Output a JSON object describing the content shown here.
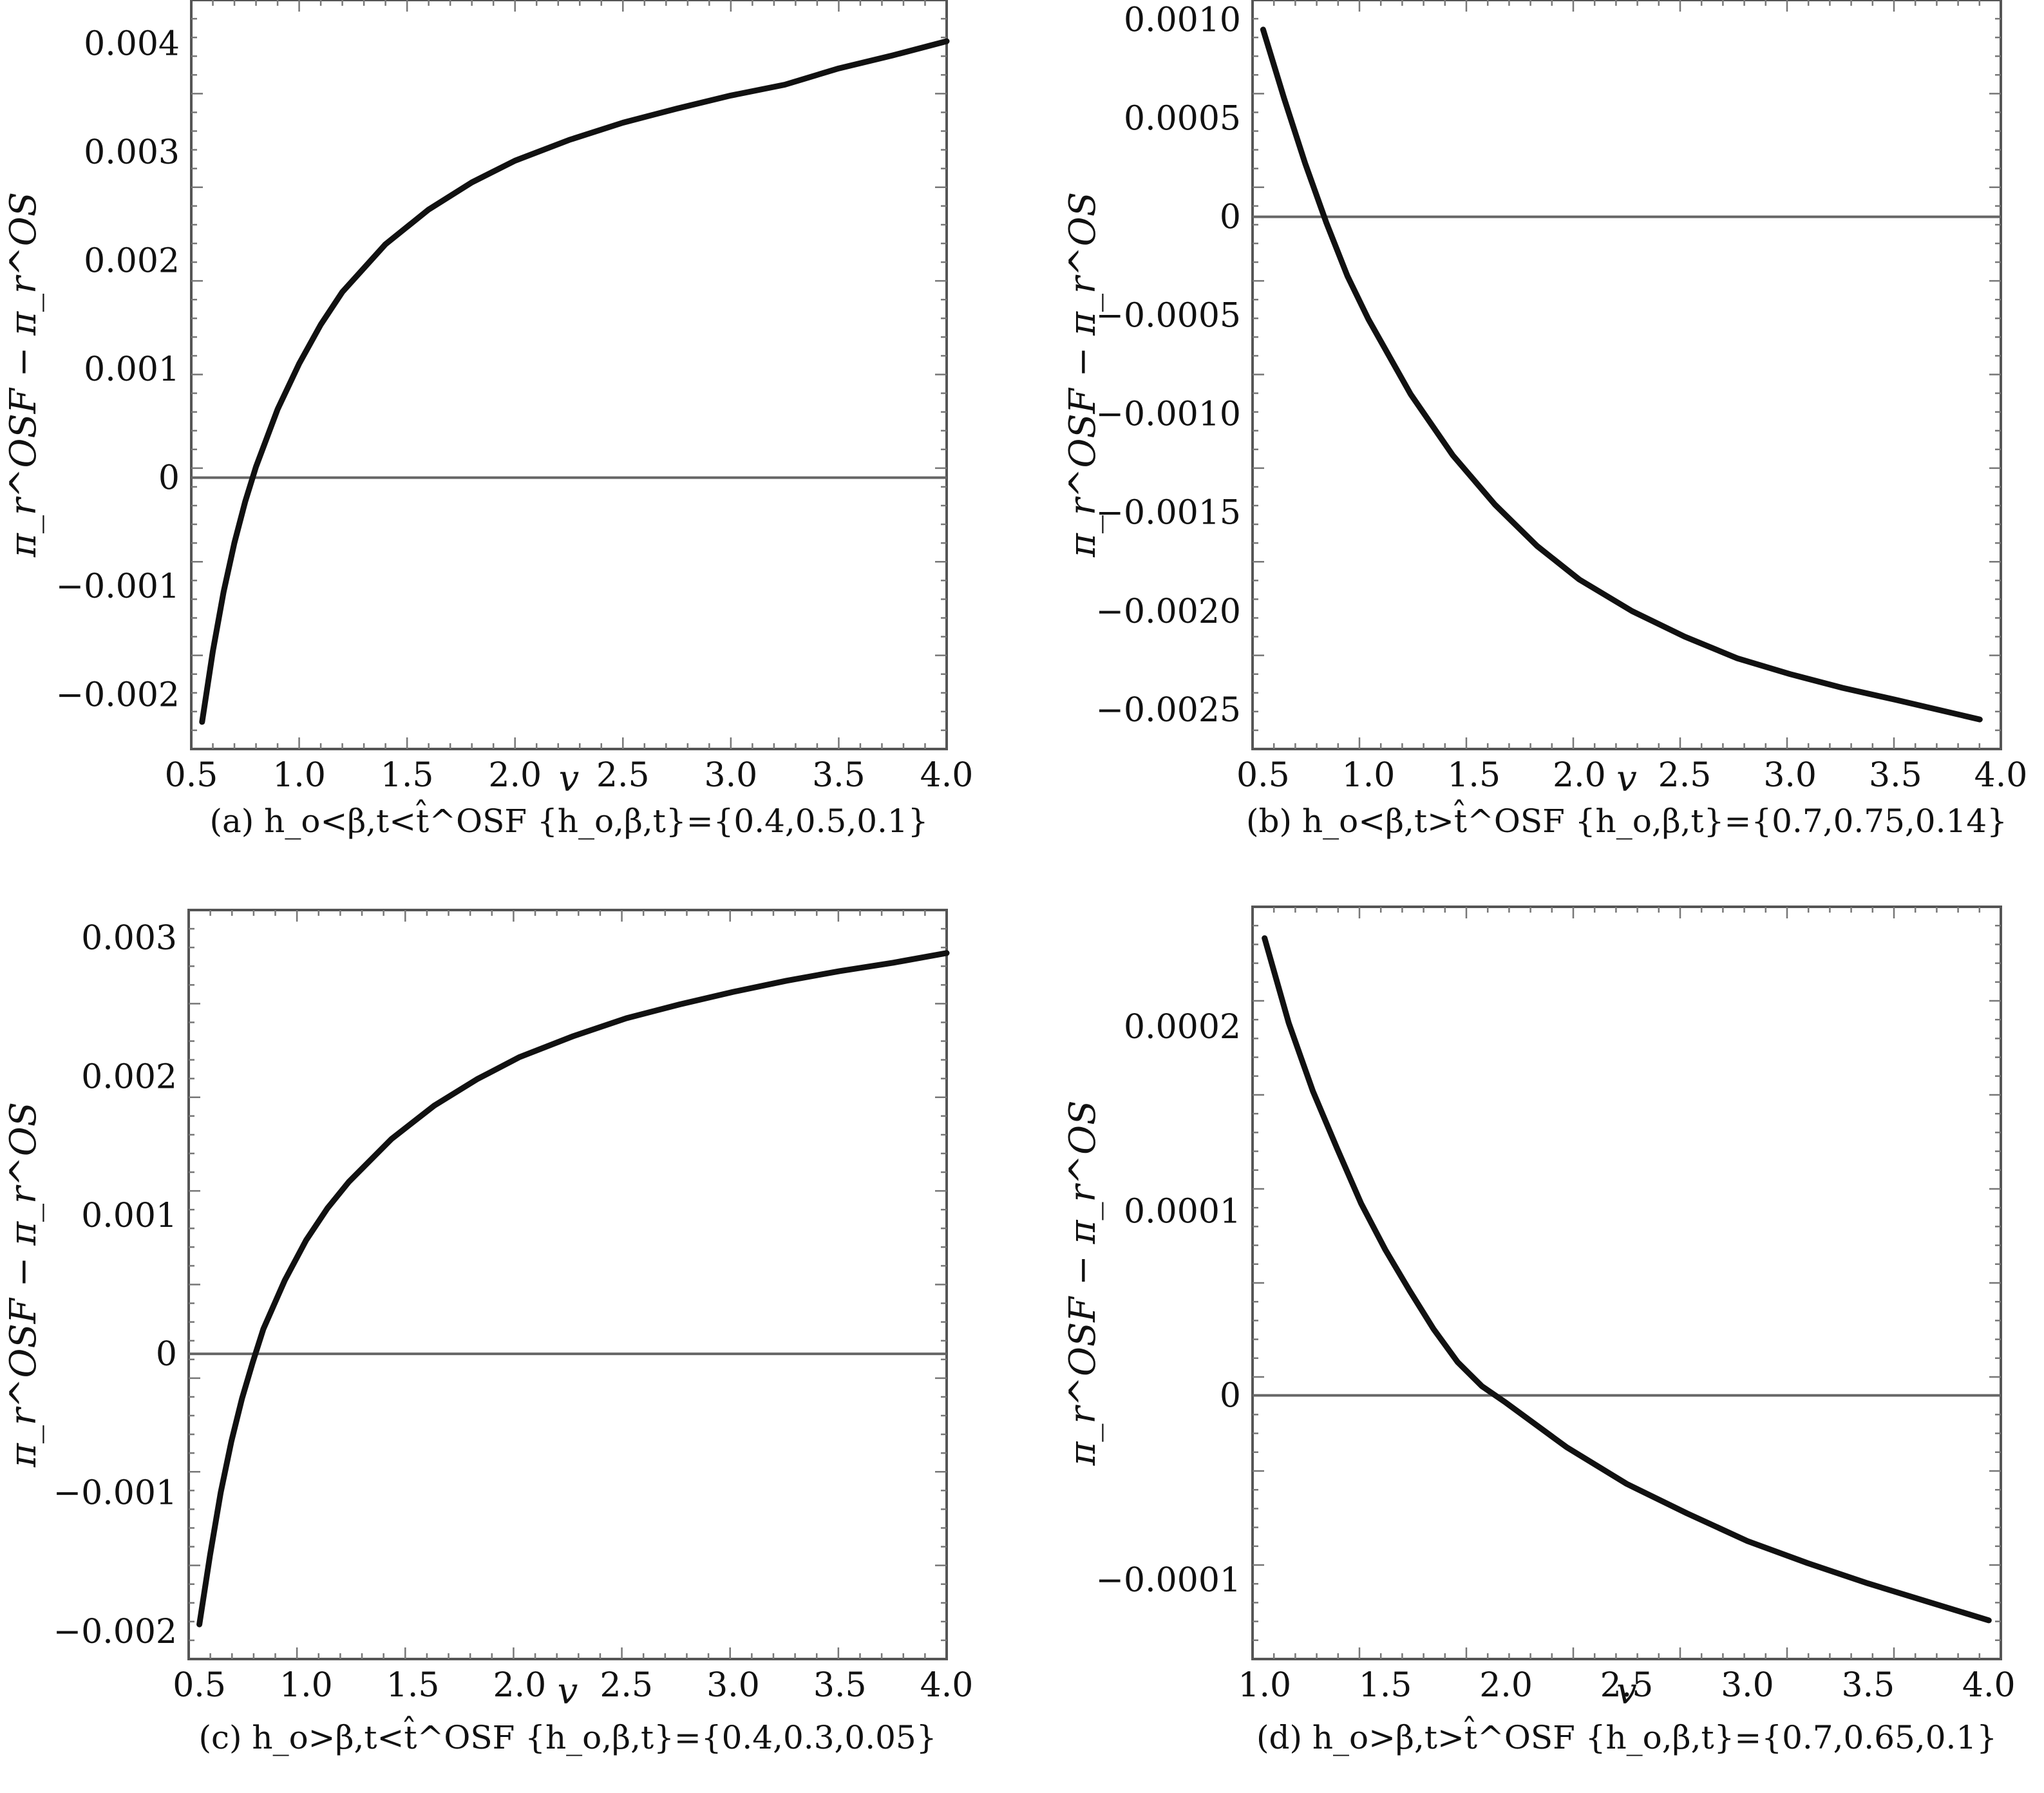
{
  "chart_data": [
    {
      "type": "line",
      "id": "a",
      "xlabel": "v",
      "ylabel": "π_r^OSF − π_r^OS",
      "caption": "(a) h_o<β,t<t̂^OSF {h_o,β,t}={0.4,0.5,0.1}",
      "xlim": [
        0.5,
        4.0
      ],
      "ylim": [
        -0.0025,
        0.0044
      ],
      "xticks": [
        "0.5",
        "1.0",
        "1.5",
        "2.0",
        "2.5",
        "3.0",
        "3.5",
        "4.0"
      ],
      "yticks": [
        "−0.002",
        "−0.001",
        "0",
        "0.001",
        "0.002",
        "0.003",
        "0.004"
      ],
      "ytick_values": [
        -0.002,
        -0.001,
        0,
        0.001,
        0.002,
        0.003,
        0.004
      ],
      "reference_line": 0,
      "series": [
        {
          "x": [
            0.55,
            0.6,
            0.65,
            0.7,
            0.75,
            0.8,
            0.9,
            1.0,
            1.1,
            1.2,
            1.4,
            1.6,
            1.8,
            2.0,
            2.25,
            2.5,
            2.75,
            3.0,
            3.25,
            3.5,
            3.75,
            4.0
          ],
          "y": [
            -0.00225,
            -0.0016,
            -0.00105,
            -0.0006,
            -0.00022,
            0.0001,
            0.00063,
            0.00105,
            0.00141,
            0.00171,
            0.00215,
            0.00247,
            0.00272,
            0.00292,
            0.00311,
            0.00327,
            0.0034,
            0.00352,
            0.00362,
            0.00377,
            0.00389,
            0.00402
          ]
        }
      ]
    },
    {
      "type": "line",
      "id": "b",
      "xlabel": "v",
      "ylabel": "π_r^OSF − π_r^OS",
      "caption": "(b) h_o<β,t>t̂^OSF {h_o,β,t}={0.7,0.75,0.14}",
      "xlim": [
        0.45,
        4.0
      ],
      "ylim": [
        -0.0027,
        0.0011
      ],
      "xticks": [
        "0.5",
        "1.0",
        "1.5",
        "2.0",
        "2.5",
        "3.0",
        "3.5",
        "4.0"
      ],
      "yticks": [
        "−0.0025",
        "−0.0020",
        "−0.0015",
        "−0.0010",
        "−0.0005",
        "0",
        "0.0005",
        "0.0010"
      ],
      "ytick_values": [
        -0.0025,
        -0.002,
        -0.0015,
        -0.001,
        -0.0005,
        0,
        0.0005,
        0.001
      ],
      "reference_line": 0,
      "series": [
        {
          "x": [
            0.5,
            0.6,
            0.7,
            0.8,
            0.9,
            1.0,
            1.2,
            1.4,
            1.6,
            1.8,
            2.0,
            2.25,
            2.5,
            2.75,
            3.0,
            3.25,
            3.5,
            3.9
          ],
          "y": [
            0.00095,
            0.0006,
            0.00027,
            -3e-05,
            -0.0003,
            -0.00052,
            -0.0009,
            -0.00121,
            -0.00146,
            -0.00167,
            -0.00184,
            -0.002,
            -0.00213,
            -0.00224,
            -0.00232,
            -0.00239,
            -0.00245,
            -0.00255
          ]
        }
      ]
    },
    {
      "type": "line",
      "id": "c",
      "xlabel": "v",
      "ylabel": "π_r^OSF − π_r^OS",
      "caption": "(c) h_o>β,t<t̂^OSF {h_o,β,t}={0.4,0.3,0.05}",
      "xlim": [
        0.45,
        4.0
      ],
      "ylim": [
        -0.0022,
        0.0032
      ],
      "xticks": [
        "0.5",
        "1.0",
        "1.5",
        "2.0",
        "2.5",
        "3.0",
        "3.5",
        "4.0"
      ],
      "yticks": [
        "−0.002",
        "−0.001",
        "0",
        "0.001",
        "0.002",
        "0.003"
      ],
      "ytick_values": [
        -0.002,
        -0.001,
        0,
        0.001,
        0.002,
        0.003
      ],
      "reference_line": 0,
      "series": [
        {
          "x": [
            0.5,
            0.55,
            0.6,
            0.65,
            0.7,
            0.75,
            0.8,
            0.9,
            1.0,
            1.1,
            1.2,
            1.4,
            1.6,
            1.8,
            2.0,
            2.25,
            2.5,
            2.75,
            3.0,
            3.25,
            3.5,
            3.75,
            4.0
          ],
          "y": [
            -0.00195,
            -0.00145,
            -0.001,
            -0.00063,
            -0.00032,
            -6e-05,
            0.00018,
            0.00053,
            0.00082,
            0.00105,
            0.00124,
            0.00155,
            0.00179,
            0.00198,
            0.00214,
            0.00229,
            0.00242,
            0.00252,
            0.00261,
            0.00269,
            0.00276,
            0.00282,
            0.00289
          ]
        }
      ]
    },
    {
      "type": "line",
      "id": "d",
      "xlabel": "v",
      "ylabel": "π_r^OSF − π_r^OS",
      "caption": "(d) h_o>β,t>t̂^OSF {h_o,β,t}={0.7,0.65,0.1}",
      "xlim": [
        0.95,
        4.05
      ],
      "ylim": [
        -0.000143,
        0.000265
      ],
      "xticks": [
        "1.0",
        "1.5",
        "2.0",
        "2.5",
        "3.0",
        "3.5",
        "4.0"
      ],
      "yticks": [
        "−0.0001",
        "0",
        "0.0001",
        "0.0002"
      ],
      "ytick_values": [
        -0.0001,
        0,
        0.0001,
        0.0002
      ],
      "reference_line": 0,
      "series": [
        {
          "x": [
            1.0,
            1.1,
            1.2,
            1.3,
            1.4,
            1.5,
            1.6,
            1.7,
            1.8,
            1.9,
            2.0,
            2.25,
            2.5,
            2.75,
            3.0,
            3.25,
            3.5,
            3.75,
            4.0
          ],
          "y": [
            0.000248,
            0.000202,
            0.000165,
            0.000134,
            0.000104,
            7.9e-05,
            5.7e-05,
            3.6e-05,
            1.8e-05,
            5e-06,
            -4e-06,
            -2.8e-05,
            -4.8e-05,
            -6.4e-05,
            -7.9e-05,
            -9.1e-05,
            -0.000102,
            -0.000112,
            -0.000122
          ]
        }
      ]
    }
  ]
}
